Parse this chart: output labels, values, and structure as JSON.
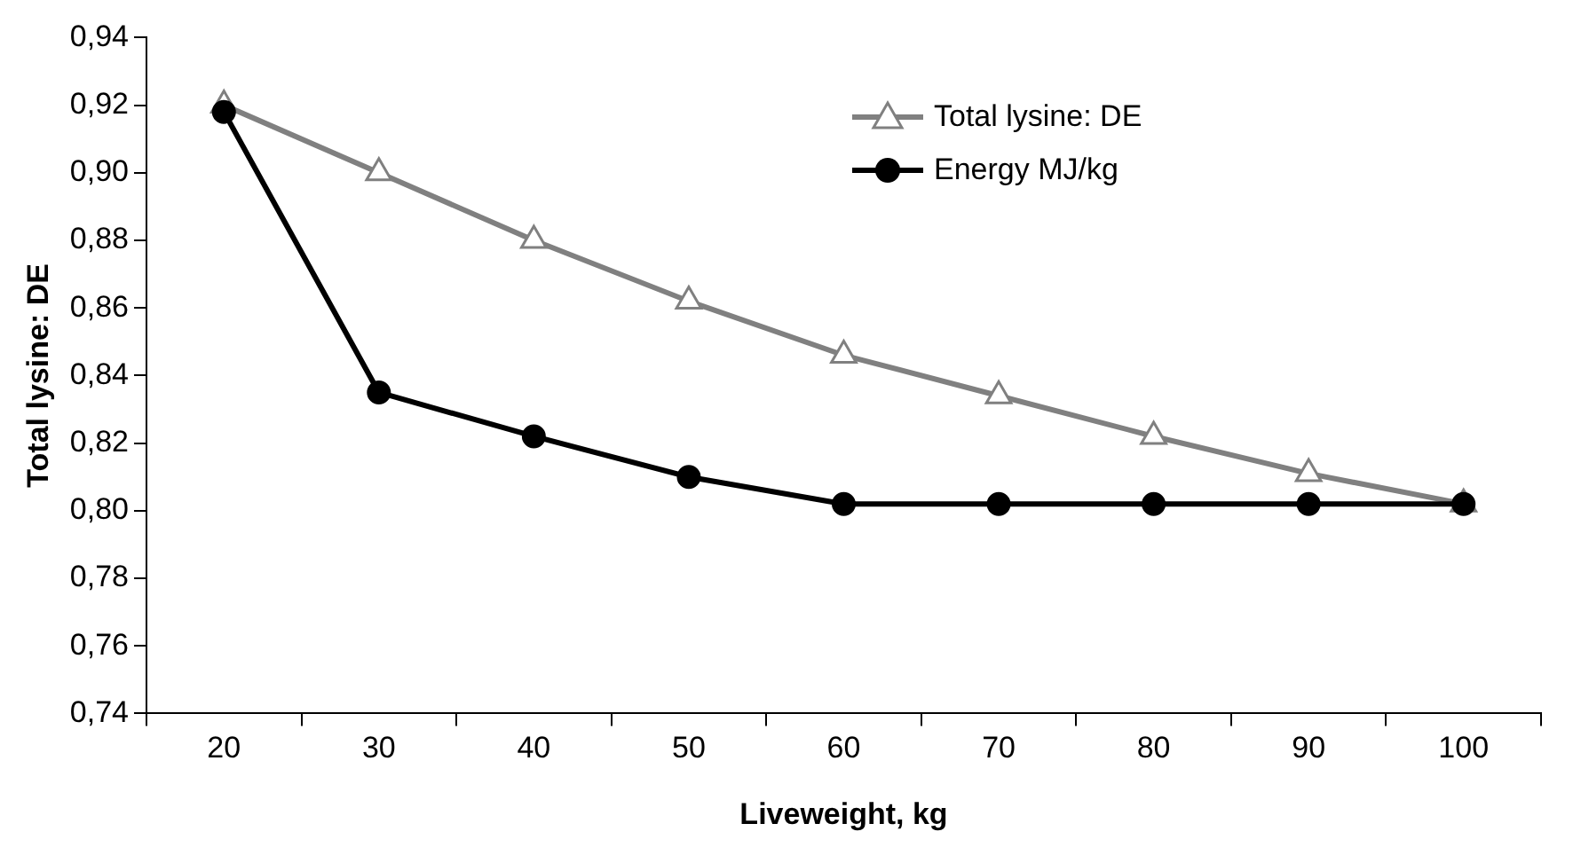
{
  "chart_data": {
    "type": "line",
    "xlabel": "Liveweight, kg",
    "ylabel": "Total lysine: DE",
    "categories": [
      "20",
      "30",
      "40",
      "50",
      "60",
      "70",
      "80",
      "90",
      "100"
    ],
    "series": [
      {
        "name": "Total lysine: DE",
        "color": "#808080",
        "marker": "triangle",
        "values": [
          0.92,
          0.9,
          0.88,
          0.862,
          0.846,
          0.834,
          0.822,
          0.811,
          0.802
        ]
      },
      {
        "name": "Energy MJ/kg",
        "color": "#000000",
        "marker": "circle",
        "values": [
          0.918,
          0.835,
          0.822,
          0.81,
          0.802,
          0.802,
          0.802,
          0.802,
          0.802
        ]
      }
    ],
    "ylim": [
      0.74,
      0.94
    ],
    "yticks": [
      {
        "value": 0.74,
        "label": "0,74"
      },
      {
        "value": 0.76,
        "label": "0,76"
      },
      {
        "value": 0.78,
        "label": "0,78"
      },
      {
        "value": 0.8,
        "label": "0,80"
      },
      {
        "value": 0.82,
        "label": "0,82"
      },
      {
        "value": 0.84,
        "label": "0,84"
      },
      {
        "value": 0.86,
        "label": "0,86"
      },
      {
        "value": 0.88,
        "label": "0,88"
      },
      {
        "value": 0.9,
        "label": "0,90"
      },
      {
        "value": 0.92,
        "label": "0,92"
      },
      {
        "value": 0.94,
        "label": "0,94"
      }
    ],
    "legend": "top right",
    "grid": false,
    "line_style": "solid"
  }
}
